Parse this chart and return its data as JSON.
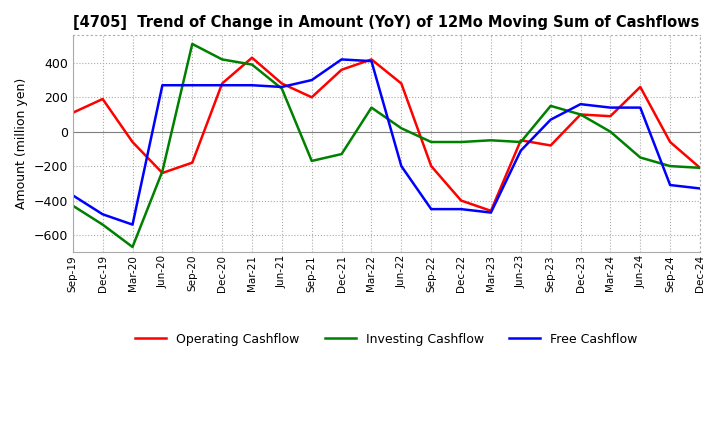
{
  "title": "[4705]  Trend of Change in Amount (YoY) of 12Mo Moving Sum of Cashflows",
  "ylabel": "Amount (million yen)",
  "xlabels": [
    "Sep-19",
    "Dec-19",
    "Mar-20",
    "Jun-20",
    "Sep-20",
    "Dec-20",
    "Mar-21",
    "Jun-21",
    "Sep-21",
    "Dec-21",
    "Mar-22",
    "Jun-22",
    "Sep-22",
    "Dec-22",
    "Mar-23",
    "Jun-23",
    "Sep-23",
    "Dec-23",
    "Mar-24",
    "Jun-24",
    "Sep-24",
    "Dec-24"
  ],
  "operating": [
    110,
    190,
    -60,
    -240,
    -180,
    280,
    430,
    280,
    200,
    360,
    420,
    280,
    -200,
    -400,
    -460,
    -50,
    -80,
    100,
    90,
    260,
    -60,
    -210
  ],
  "investing": [
    -430,
    -540,
    -670,
    -230,
    510,
    420,
    390,
    250,
    -170,
    -130,
    140,
    20,
    -60,
    -60,
    -50,
    -60,
    150,
    100,
    0,
    -150,
    -200,
    -210
  ],
  "free": [
    -370,
    -480,
    -540,
    270,
    270,
    270,
    270,
    260,
    300,
    420,
    410,
    -200,
    -450,
    -450,
    -470,
    -110,
    70,
    160,
    140,
    140,
    -310,
    -330
  ],
  "operating_color": "#ff0000",
  "investing_color": "#008000",
  "free_color": "#0000ff",
  "ylim": [
    -700,
    560
  ],
  "yticks": [
    -600,
    -400,
    -200,
    0,
    200,
    400
  ],
  "background_color": "#ffffff",
  "grid_color": "#aaaaaa"
}
